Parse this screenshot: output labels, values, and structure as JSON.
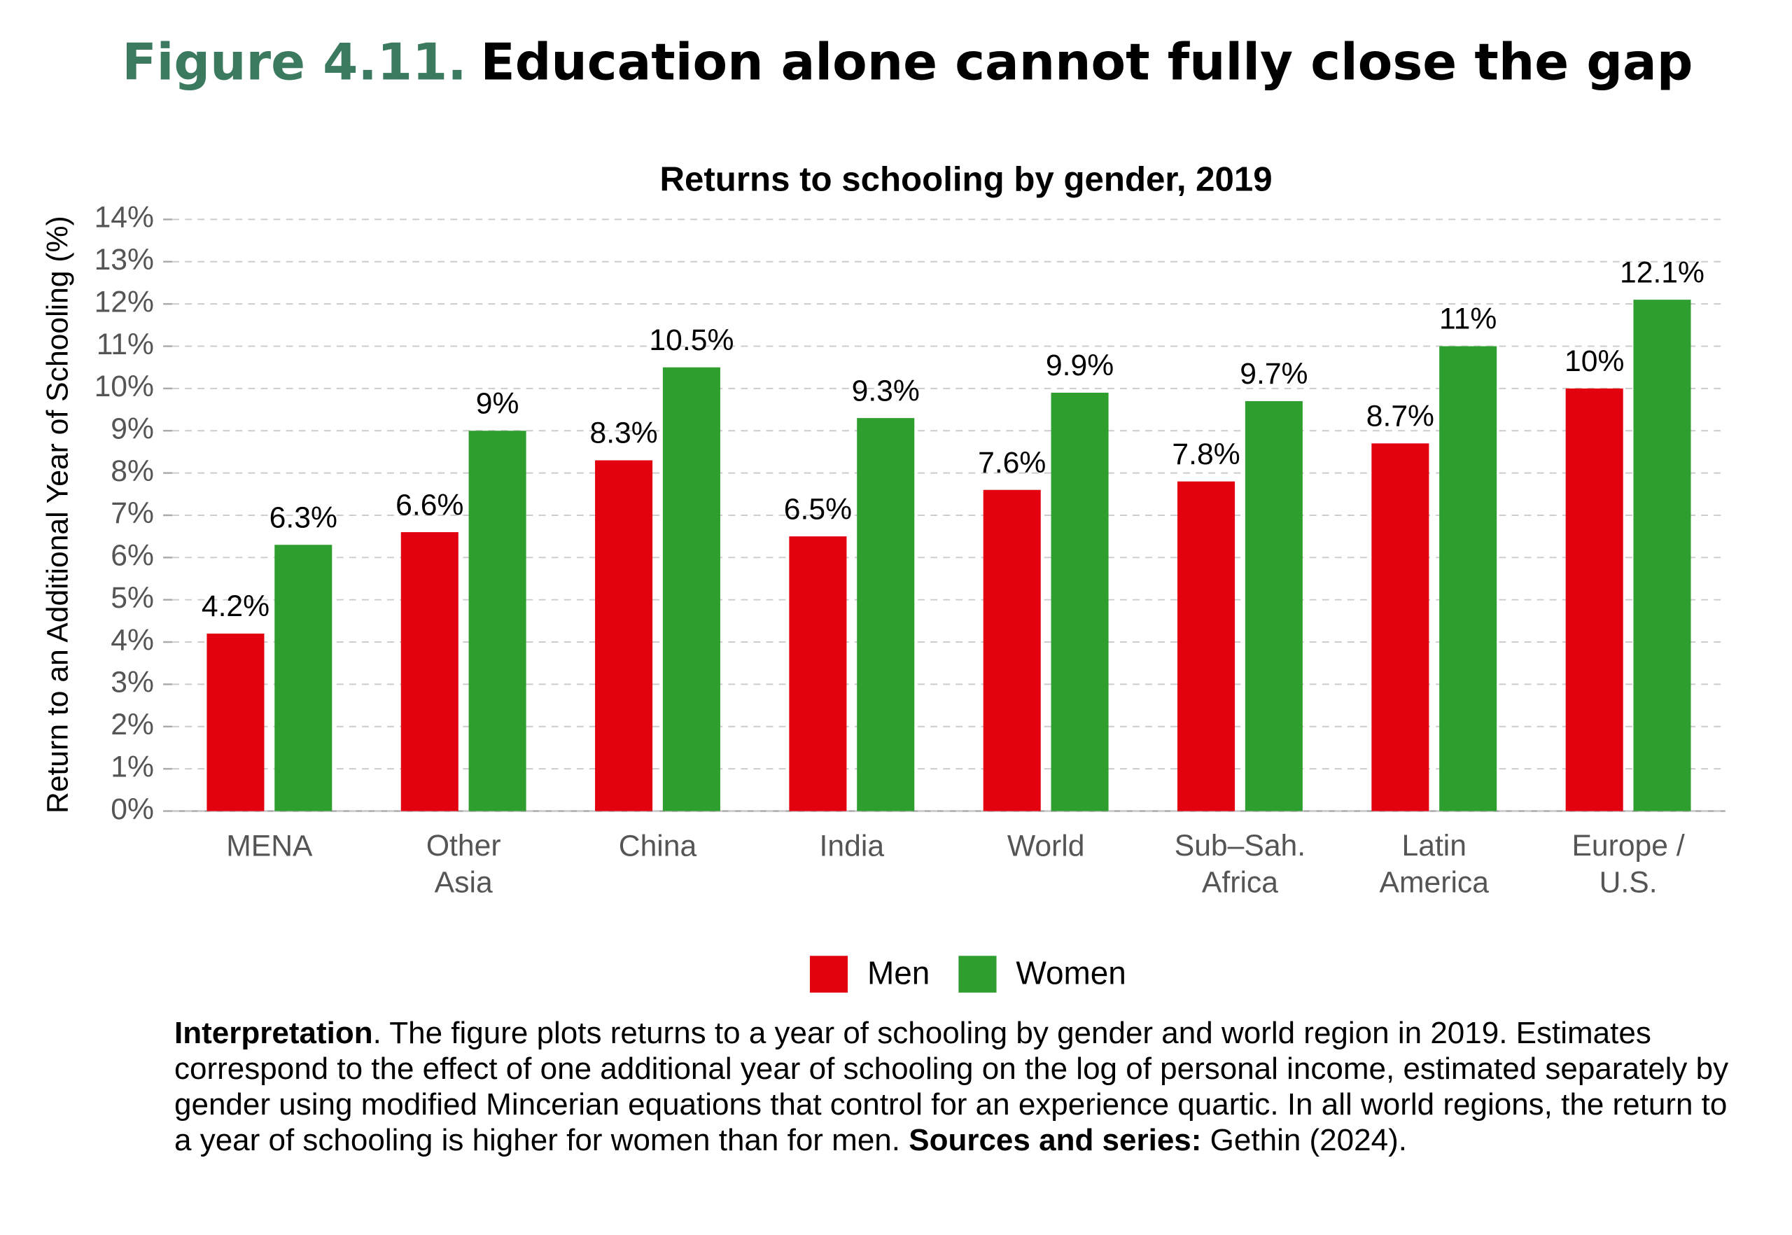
{
  "chart_data": {
    "type": "bar",
    "figure_label": "Figure 4.11.",
    "heading": "Education alone cannot fully close the gap",
    "title": "Returns to schooling by gender, 2019",
    "y_label": "Return to an Additional Year of Schooling (%)",
    "categories": [
      "MENA",
      "Other Asia",
      "China",
      "India",
      "World",
      "Sub–Sah. Africa",
      "Latin America",
      "Europe / U.S."
    ],
    "series": [
      {
        "name": "Men",
        "color": "#e3000f",
        "values": [
          4.2,
          6.6,
          8.3,
          6.5,
          7.6,
          7.8,
          8.7,
          10
        ],
        "value_labels": [
          "4.2%",
          "6.6%",
          "8.3%",
          "6.5%",
          "7.6%",
          "7.8%",
          "8.7%",
          "10%"
        ]
      },
      {
        "name": "Women",
        "color": "#2e9f2e",
        "values": [
          6.3,
          9,
          10.5,
          9.3,
          9.9,
          9.7,
          11,
          12.1
        ],
        "value_labels": [
          "6.3%",
          "9%",
          "10.5%",
          "9.3%",
          "9.9%",
          "9.7%",
          "11%",
          "12.1%"
        ]
      }
    ],
    "ylim": [
      0,
      14
    ],
    "yticks": [
      {
        "value": 0,
        "label": "0%"
      },
      {
        "value": 1,
        "label": "1%"
      },
      {
        "value": 2,
        "label": "2%"
      },
      {
        "value": 3,
        "label": "3%"
      },
      {
        "value": 4,
        "label": "4%"
      },
      {
        "value": 5,
        "label": "5%"
      },
      {
        "value": 6,
        "label": "6%"
      },
      {
        "value": 7,
        "label": "7%"
      },
      {
        "value": 8,
        "label": "8%"
      },
      {
        "value": 9,
        "label": "9%"
      },
      {
        "value": 10,
        "label": "10%"
      },
      {
        "value": 11,
        "label": "11%"
      },
      {
        "value": 12,
        "label": "12%"
      },
      {
        "value": 13,
        "label": "13%"
      },
      {
        "value": 14,
        "label": "14%"
      }
    ],
    "grid": true,
    "legend": "bottom",
    "note_lead": "Interpretation",
    "note_body": ". The figure plots returns to a year of schooling by gender and world region in 2019. Estimates correspond to the effect of one additional year of schooling on the log of personal income, estimated separately by gender using modified Mincerian equations that control for an experience quartic. In all world regions, the return to a year of schooling is higher for women than for men.",
    "note_sources_label": "Sources and series:",
    "note_sources": "Gethin (2024)."
  }
}
